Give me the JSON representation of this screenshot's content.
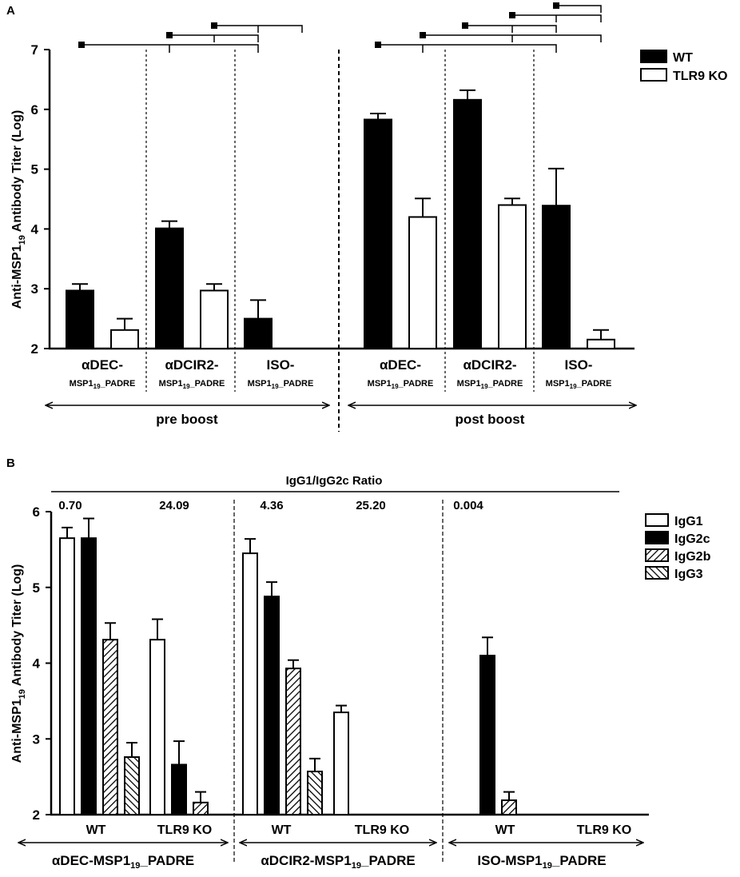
{
  "chart_data": [
    {
      "panel": "A",
      "type": "bar",
      "ylabel": "Anti-MSP1",
      "ylabel_sub": "19",
      "ylabel_tail": " Antibody Titer (Log)",
      "ylim": [
        2,
        7
      ],
      "yticks": [
        "2",
        "3",
        "4",
        "5",
        "6",
        "7"
      ],
      "legend": [
        {
          "name": "WT",
          "color": "#000000"
        },
        {
          "name": "TLR9 KO",
          "color": "#ffffff"
        }
      ],
      "groups": [
        {
          "line1": "αDEC-",
          "l2a": "MSP1",
          "l2sub": "19",
          "l2b": "_PADRE"
        },
        {
          "line1": "αDCIR2-",
          "l2a": "MSP1",
          "l2sub": "19",
          "l2b": "_PADRE"
        },
        {
          "line1": "ISO-",
          "l2a": "MSP1",
          "l2sub": "19",
          "l2b": "_PADRE"
        },
        {
          "line1": "αDEC-",
          "l2a": "MSP1",
          "l2sub": "19",
          "l2b": "_PADRE"
        },
        {
          "line1": "αDCIR2-",
          "l2a": "MSP1",
          "l2sub": "19",
          "l2b": "_PADRE"
        },
        {
          "line1": "ISO-",
          "l2a": "MSP1",
          "l2sub": "19",
          "l2b": "_PADRE"
        }
      ],
      "phases": [
        "pre boost",
        "post boost"
      ],
      "series": [
        {
          "name": "WT",
          "values": [
            2.97,
            4.01,
            2.5,
            5.83,
            6.16,
            4.39
          ],
          "errors": [
            0.11,
            0.12,
            0.31,
            0.1,
            0.16,
            0.62
          ]
        },
        {
          "name": "TLR9 KO",
          "values": [
            2.31,
            2.97,
            2.0,
            4.2,
            4.4,
            2.15
          ],
          "errors": [
            0.19,
            0.11,
            0.0,
            0.31,
            0.11,
            0.16
          ]
        }
      ]
    },
    {
      "panel": "B",
      "type": "bar",
      "ylabel": "Anti-MSP1",
      "ylabel_sub": "19",
      "ylabel_tail": " Antibody Titer (Log)",
      "ylim": [
        2,
        6
      ],
      "yticks": [
        "2",
        "3",
        "4",
        "5",
        "6"
      ],
      "ratio_title": "IgG1/IgG2c Ratio",
      "ratios": [
        "0.70",
        "24.09",
        "4.36",
        "25.20",
        "0.004"
      ],
      "legend": [
        {
          "name": "IgG1",
          "pattern": "white"
        },
        {
          "name": "IgG2c",
          "pattern": "black"
        },
        {
          "name": "IgG2b",
          "pattern": "hatch-right"
        },
        {
          "name": "IgG3",
          "pattern": "hatch-left"
        }
      ],
      "subgroups": [
        "WT",
        "TLR9 KO",
        "WT",
        "TLR9 KO",
        "WT",
        "TLR9 KO"
      ],
      "constructs": [
        {
          "a": "αDEC-MSP1",
          "sub": "19",
          "b": "_PADRE"
        },
        {
          "a": "αDCIR2-MSP1",
          "sub": "19",
          "b": "_PADRE"
        },
        {
          "a": "ISO-MSP1",
          "sub": "19",
          "b": "_PADRE"
        }
      ],
      "series": [
        {
          "name": "IgG1",
          "values": [
            5.65,
            4.31,
            5.45,
            3.35,
            2.0,
            2.0
          ],
          "errors": [
            0.14,
            0.27,
            0.19,
            0.09,
            0,
            0
          ]
        },
        {
          "name": "IgG2c",
          "values": [
            5.65,
            2.66,
            4.88,
            2.0,
            4.1,
            2.0
          ],
          "errors": [
            0.26,
            0.31,
            0.19,
            0,
            0.24,
            0
          ]
        },
        {
          "name": "IgG2b",
          "values": [
            4.31,
            2.16,
            3.93,
            2.0,
            2.19,
            2.0
          ],
          "errors": [
            0.22,
            0.14,
            0.11,
            0,
            0.11,
            0
          ]
        },
        {
          "name": "IgG3",
          "values": [
            2.76,
            2.0,
            2.57,
            2.0,
            2.0,
            2.0
          ],
          "errors": [
            0.19,
            0,
            0.17,
            0,
            0,
            0
          ]
        }
      ]
    }
  ]
}
